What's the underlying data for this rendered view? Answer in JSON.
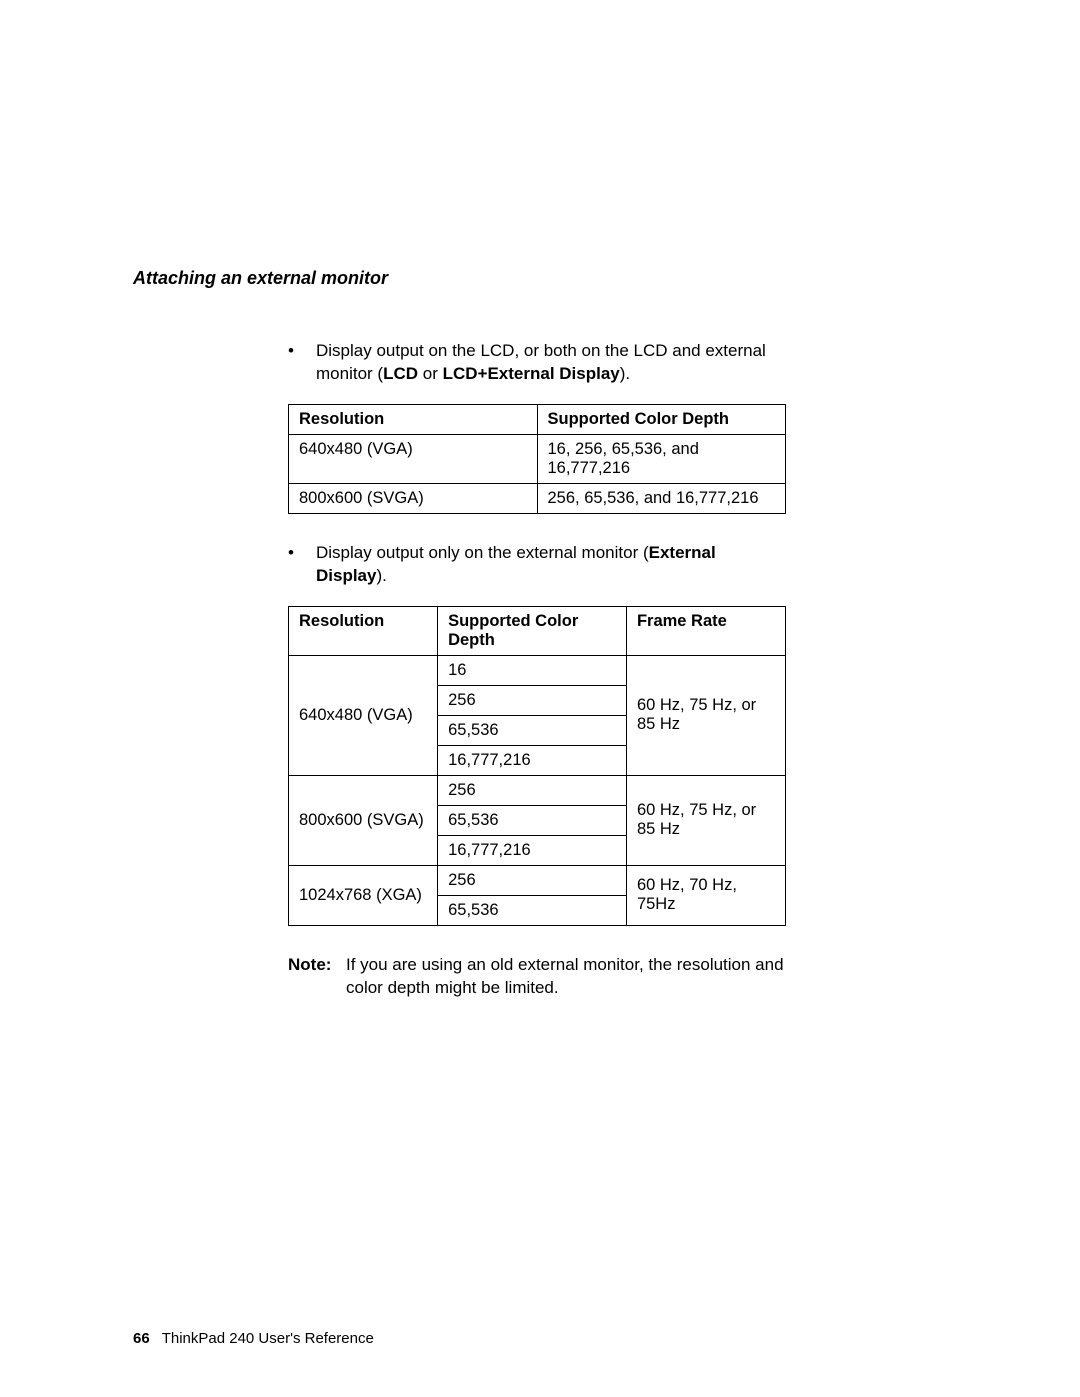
{
  "sectionHeading": "Attaching an external monitor",
  "bullet1": {
    "prefix": "Display output on the LCD, or both on the LCD and external monitor (",
    "bold1": "LCD",
    "mid": " or ",
    "bold2": "LCD+External Display",
    "suffix": ")."
  },
  "table1": {
    "headers": [
      "Resolution",
      "Supported Color Depth"
    ],
    "rows": [
      [
        "640x480 (VGA)",
        "16, 256, 65,536, and 16,777,216"
      ],
      [
        "800x600 (SVGA)",
        "256, 65,536, and 16,777,216"
      ]
    ]
  },
  "bullet2": {
    "prefix": "Display output only on the external monitor (",
    "bold1": "External Display",
    "suffix": ")."
  },
  "table2": {
    "headers": [
      "Resolution",
      "Supported Color Depth",
      "Frame Rate"
    ],
    "groups": [
      {
        "resolution": "640x480 (VGA)",
        "depths": [
          "16",
          "256",
          "65,536",
          "16,777,216"
        ],
        "frame": "60 Hz, 75 Hz, or 85 Hz"
      },
      {
        "resolution": "800x600 (SVGA)",
        "depths": [
          "256",
          "65,536",
          "16,777,216"
        ],
        "frame": "60 Hz, 75 Hz, or 85 Hz"
      },
      {
        "resolution": "1024x768 (XGA)",
        "depths": [
          "256",
          "65,536"
        ],
        "frame": "60 Hz, 70 Hz, 75Hz"
      }
    ]
  },
  "note": {
    "label": "Note:",
    "text": "If you are using an old external monitor, the resolution and color depth might be limited."
  },
  "footer": {
    "pageNumber": "66",
    "bookTitle": "ThinkPad 240 User's Reference"
  }
}
